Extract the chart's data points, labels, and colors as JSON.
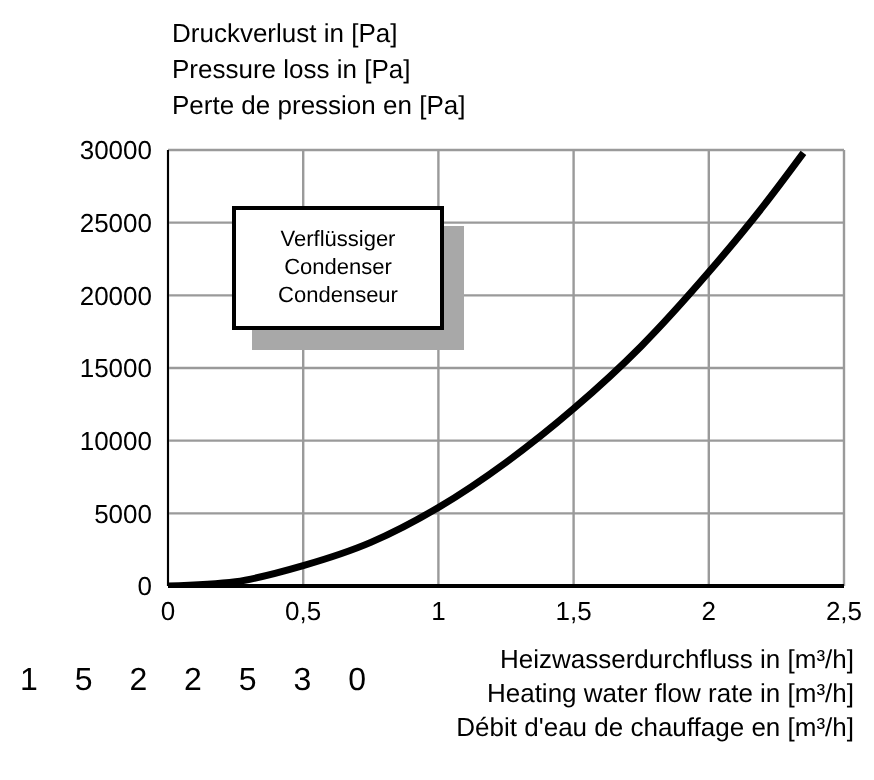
{
  "chart_data": {
    "type": "line",
    "ylabel": "Druckverlust in [Pa]\nPressure loss in [Pa]\nPerte de pression en [Pa]",
    "xlabel": "Heizwasserdurchfluss in [m³/h]\nHeating water flow rate in [m³/h]\nDébit d'eau de chauffage en [m³/h]",
    "x": [
      0,
      0.25,
      0.5,
      0.75,
      1,
      1.25,
      1.5,
      1.75,
      2,
      2.2,
      2.35
    ],
    "series": [
      {
        "color": "#000000",
        "values": [
          0,
          300,
          1400,
          3000,
          5400,
          8500,
          12200,
          16500,
          21600,
          26100,
          29800
        ]
      }
    ],
    "xlim": [
      0,
      2.5
    ],
    "xticks": [
      0,
      {
        "value": 0.5,
        "label": "0,5"
      },
      1,
      {
        "value": 1.5,
        "label": "1,5"
      },
      2,
      {
        "value": 2.5,
        "label": "2,5"
      }
    ],
    "ylim": [
      0,
      30000
    ],
    "yticks": [
      0,
      5000,
      10000,
      15000,
      20000,
      25000,
      30000
    ],
    "grid": true,
    "marker": "none",
    "line_style": "solid",
    "annotations": [
      "Verflüssiger\nCondenser\nCondenseur",
      "1 5 2 2 5 3 0"
    ]
  }
}
